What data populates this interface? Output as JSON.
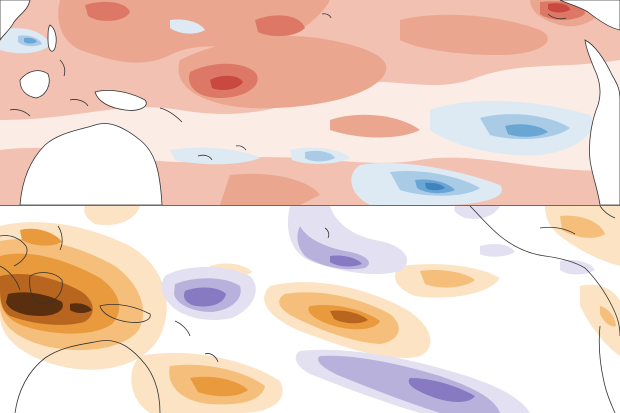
{
  "figure": {
    "panels": [
      {
        "id": "sea-surface-temperature-anomaly",
        "colors": {
          "warm_light": "#f6d4c8",
          "warm_mid": "#eeaa95",
          "warm_strong": "#e07a66",
          "warm_max": "#c9463f",
          "cool_light": "#dde9f3",
          "cool_mid": "#a9cbe6",
          "cool_strong": "#6aa6d4",
          "cool_max": "#3f84bf",
          "land": "#ffffff",
          "coastline": "#333333"
        }
      },
      {
        "id": "precipitation-or-olr-anomaly",
        "colors": {
          "dry_light": "#fbe3c4",
          "dry_mid": "#f5be7a",
          "dry_strong": "#e89a3c",
          "dry_max": "#b8661f",
          "dry_darkest": "#5a2f10",
          "wet_light": "#e3e0f1",
          "wet_mid": "#b8b1dc",
          "wet_strong": "#8779c2",
          "coastline": "#333333"
        }
      }
    ]
  }
}
